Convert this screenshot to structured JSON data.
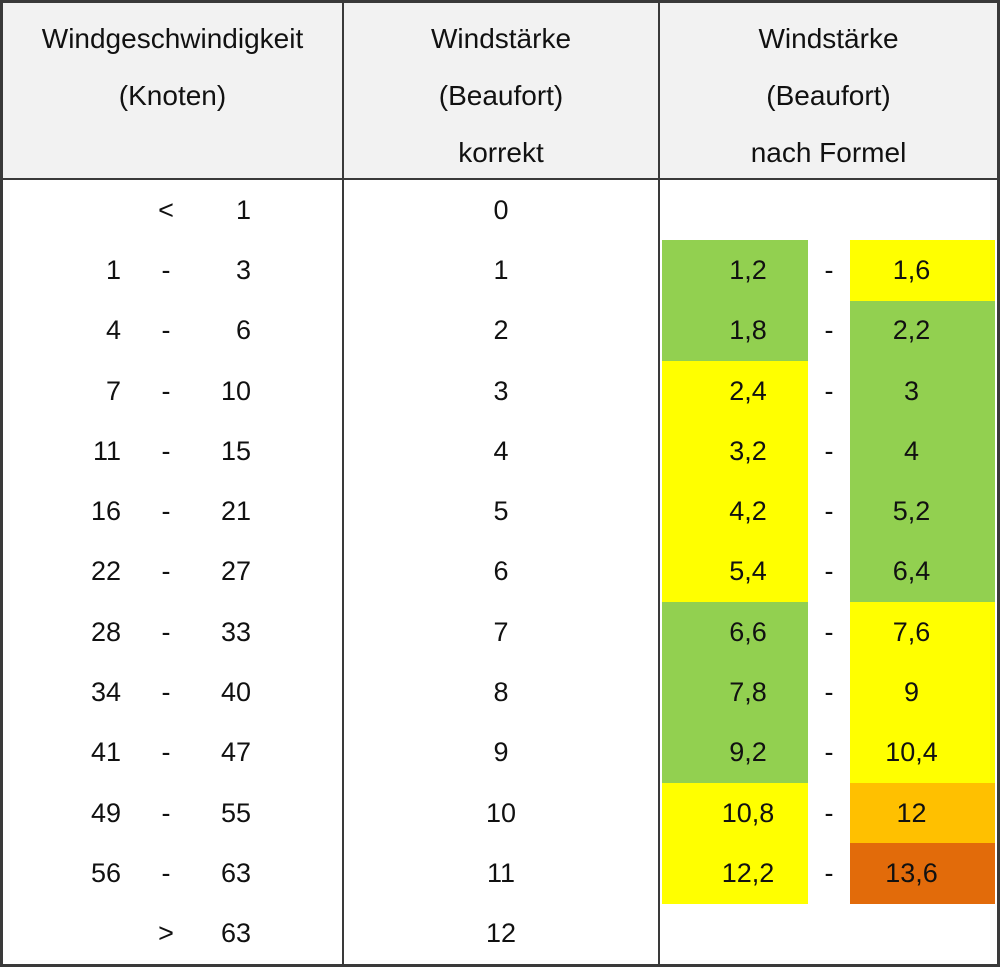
{
  "colors": {
    "green": "#92D050",
    "yellow": "#FFFF00",
    "orange": "#FFC000",
    "dark_orange": "#E26B0A",
    "header_bg": "#F2F2F2",
    "border": "#3a3a3a",
    "none": "transparent"
  },
  "header": {
    "col1": {
      "line1": "Windgeschwindigkeit",
      "line2": "(Knoten)",
      "line3": ""
    },
    "col2": {
      "line1": "Windstärke",
      "line2": "(Beaufort)",
      "line3": "korrekt"
    },
    "col3": {
      "line1": "Windstärke",
      "line2": "(Beaufort)",
      "line3": "nach Formel"
    }
  },
  "chart_data": {
    "type": "table",
    "columns": [
      "Windgeschwindigkeit (Knoten)",
      "Windstärke (Beaufort) korrekt",
      "Windstärke (Beaufort) nach Formel"
    ],
    "rows": [
      {
        "from": "",
        "op": "<",
        "to": "1",
        "beaufort": "0",
        "f_low": "",
        "f_op": "",
        "f_high": "",
        "low_color": "none",
        "high_color": "none"
      },
      {
        "from": "1",
        "op": "-",
        "to": "3",
        "beaufort": "1",
        "f_low": "1,2",
        "f_op": "-",
        "f_high": "1,6",
        "low_color": "green",
        "high_color": "yellow"
      },
      {
        "from": "4",
        "op": "-",
        "to": "6",
        "beaufort": "2",
        "f_low": "1,8",
        "f_op": "-",
        "f_high": "2,2",
        "low_color": "green",
        "high_color": "green"
      },
      {
        "from": "7",
        "op": "-",
        "to": "10",
        "beaufort": "3",
        "f_low": "2,4",
        "f_op": "-",
        "f_high": "3",
        "low_color": "yellow",
        "high_color": "green"
      },
      {
        "from": "11",
        "op": "-",
        "to": "15",
        "beaufort": "4",
        "f_low": "3,2",
        "f_op": "-",
        "f_high": "4",
        "low_color": "yellow",
        "high_color": "green"
      },
      {
        "from": "16",
        "op": "-",
        "to": "21",
        "beaufort": "5",
        "f_low": "4,2",
        "f_op": "-",
        "f_high": "5,2",
        "low_color": "yellow",
        "high_color": "green"
      },
      {
        "from": "22",
        "op": "-",
        "to": "27",
        "beaufort": "6",
        "f_low": "5,4",
        "f_op": "-",
        "f_high": "6,4",
        "low_color": "yellow",
        "high_color": "green"
      },
      {
        "from": "28",
        "op": "-",
        "to": "33",
        "beaufort": "7",
        "f_low": "6,6",
        "f_op": "-",
        "f_high": "7,6",
        "low_color": "green",
        "high_color": "yellow"
      },
      {
        "from": "34",
        "op": "-",
        "to": "40",
        "beaufort": "8",
        "f_low": "7,8",
        "f_op": "-",
        "f_high": "9",
        "low_color": "green",
        "high_color": "yellow"
      },
      {
        "from": "41",
        "op": "-",
        "to": "47",
        "beaufort": "9",
        "f_low": "9,2",
        "f_op": "-",
        "f_high": "10,4",
        "low_color": "green",
        "high_color": "yellow"
      },
      {
        "from": "49",
        "op": "-",
        "to": "55",
        "beaufort": "10",
        "f_low": "10,8",
        "f_op": "-",
        "f_high": "12",
        "low_color": "yellow",
        "high_color": "orange"
      },
      {
        "from": "56",
        "op": "-",
        "to": "63",
        "beaufort": "11",
        "f_low": "12,2",
        "f_op": "-",
        "f_high": "13,6",
        "low_color": "yellow",
        "high_color": "dark_orange"
      },
      {
        "from": "",
        "op": ">",
        "to": "63",
        "beaufort": "12",
        "f_low": "",
        "f_op": "",
        "f_high": "",
        "low_color": "none",
        "high_color": "none"
      }
    ]
  }
}
